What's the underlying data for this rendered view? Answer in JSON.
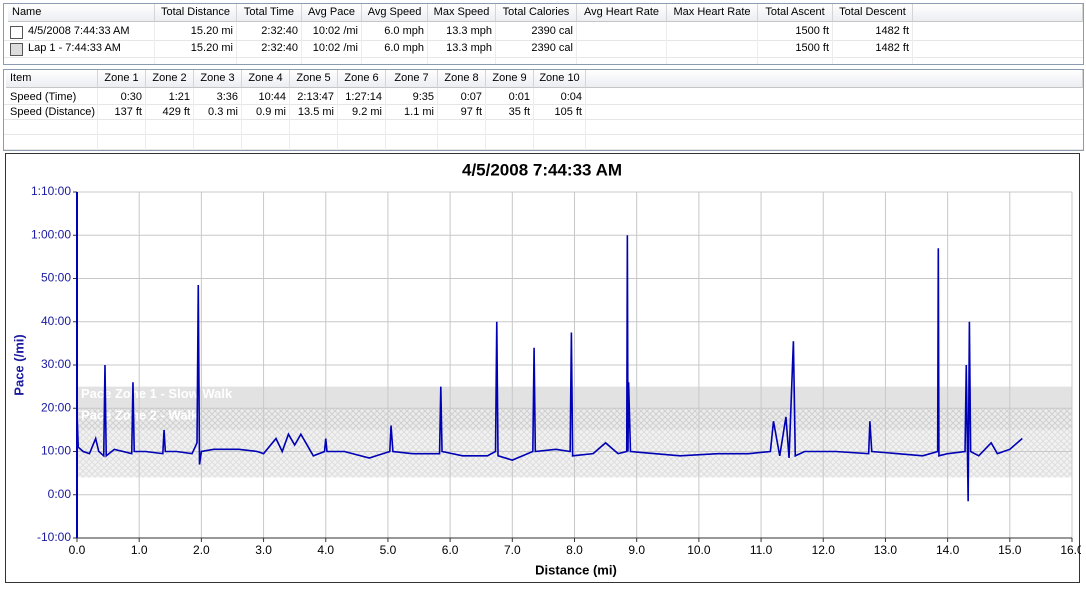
{
  "top_table": {
    "columns": [
      "Name",
      "Total Distance",
      "Total Time",
      "Avg Pace",
      "Avg Speed",
      "Max Speed",
      "Total Calories",
      "Avg Heart Rate",
      "Max Heart Rate",
      "Total Ascent",
      "Total Descent"
    ],
    "rows": [
      [
        "4/5/2008 7:44:33 AM",
        "15.20 mi",
        "2:32:40",
        "10:02 /mi",
        "6.0 mph",
        "13.3 mph",
        "2390 cal",
        null,
        null,
        "1500 ft",
        "1482 ft"
      ],
      [
        "Lap 1 - 7:44:33 AM",
        "15.20 mi",
        "2:32:40",
        "10:02 /mi",
        "6.0 mph",
        "13.3 mph",
        "2390 cal",
        null,
        null,
        "1500 ft",
        "1482 ft"
      ]
    ]
  },
  "zone_table": {
    "columns": [
      "Item",
      "Zone 1",
      "Zone 2",
      "Zone 3",
      "Zone 4",
      "Zone 5",
      "Zone 6",
      "Zone 7",
      "Zone 8",
      "Zone 9",
      "Zone 10"
    ],
    "rows": [
      [
        "Speed (Time)",
        "0:30",
        "1:21",
        "3:36",
        "10:44",
        "2:13:47",
        "1:27:14",
        "9:35",
        "0:07",
        "0:01",
        "0:04"
      ],
      [
        "Speed (Distance)",
        "137 ft",
        "429 ft",
        "0.3 mi",
        "0.9 mi",
        "13.5 mi",
        "9.2 mi",
        "1.1 mi",
        "97 ft",
        "35 ft",
        "105 ft"
      ]
    ]
  },
  "chart_data": {
    "type": "line",
    "title": "4/5/2008 7:44:33 AM",
    "x_label": "Distance (mi)",
    "y_label": "Pace (/mi)",
    "color": "#0000b4",
    "grid": true,
    "xlim": [
      0,
      16
    ],
    "xticks": [
      {
        "value": 0,
        "label": "0.0"
      },
      {
        "value": 1,
        "label": "1.0"
      },
      {
        "value": 2,
        "label": "2.0"
      },
      {
        "value": 3,
        "label": "3.0"
      },
      {
        "value": 4,
        "label": "4.0"
      },
      {
        "value": 5,
        "label": "5.0"
      },
      {
        "value": 6,
        "label": "6.0"
      },
      {
        "value": 7,
        "label": "7.0"
      },
      {
        "value": 8,
        "label": "8.0"
      },
      {
        "value": 9,
        "label": "9.0"
      },
      {
        "value": 10,
        "label": "10.0"
      },
      {
        "value": 11,
        "label": "11.0"
      },
      {
        "value": 12,
        "label": "12.0"
      },
      {
        "value": 13,
        "label": "13.0"
      },
      {
        "value": 14,
        "label": "14.0"
      },
      {
        "value": 15,
        "label": "15.0"
      },
      {
        "value": 16,
        "label": "16.0"
      }
    ],
    "ylim": [
      -10,
      70
    ],
    "yticks": [
      {
        "value": -10,
        "label": "-10:00"
      },
      {
        "value": 0,
        "label": "0:00"
      },
      {
        "value": 10,
        "label": "10:00"
      },
      {
        "value": 20,
        "label": "20:00"
      },
      {
        "value": 30,
        "label": "30:00"
      },
      {
        "value": 40,
        "label": "40:00"
      },
      {
        "value": 50,
        "label": "50:00"
      },
      {
        "value": 60,
        "label": "1:00:00"
      },
      {
        "value": 70,
        "label": "1:10:00"
      }
    ],
    "zones": [
      {
        "name": "Pace Zone 1 - Slow Walk",
        "range": [
          20,
          25
        ]
      },
      {
        "name": "Pace Zone 2 - Walk",
        "range": [
          15,
          20
        ]
      },
      {
        "range": [
          4,
          15
        ]
      }
    ],
    "x": [
      0,
      0.02,
      0.1,
      0.2,
      0.3,
      0.35,
      0.43,
      0.45,
      0.47,
      0.6,
      0.88,
      0.9,
      0.92,
      1.1,
      1.38,
      1.4,
      1.42,
      1.6,
      1.85,
      1.93,
      1.95,
      1.97,
      2.0,
      2.2,
      2.6,
      2.9,
      3.0,
      3.2,
      3.3,
      3.4,
      3.5,
      3.6,
      3.8,
      3.98,
      4.0,
      4.02,
      4.3,
      4.7,
      5.03,
      5.05,
      5.08,
      5.4,
      5.83,
      5.85,
      5.87,
      6.2,
      6.6,
      6.73,
      6.75,
      6.77,
      7.0,
      7.33,
      7.35,
      7.37,
      7.7,
      7.93,
      7.95,
      7.97,
      8.3,
      8.5,
      8.7,
      8.84,
      8.85,
      8.86,
      8.87,
      8.9,
      9.3,
      9.7,
      10.3,
      10.8,
      11.15,
      11.2,
      11.3,
      11.4,
      11.45,
      11.52,
      11.55,
      11.7,
      12.2,
      12.73,
      12.75,
      12.78,
      13.2,
      13.6,
      13.84,
      13.85,
      13.86,
      14.0,
      14.28,
      14.3,
      14.32,
      14.33,
      14.35,
      14.37,
      14.5,
      14.7,
      14.8,
      15.0,
      15.2
    ],
    "values": [
      19,
      11,
      10,
      9.5,
      13,
      10,
      9,
      30,
      9,
      10.5,
      9.5,
      26,
      10,
      10,
      9.5,
      15,
      10,
      10,
      9.5,
      12,
      48.5,
      7,
      10,
      10.5,
      10.5,
      10,
      9.5,
      13,
      10,
      14,
      11.5,
      14,
      9,
      10,
      13,
      10,
      10,
      8.5,
      10,
      16,
      10,
      9.5,
      9.5,
      25,
      10,
      9,
      9,
      10,
      40,
      9,
      8,
      10,
      34,
      10,
      10.5,
      10,
      37.5,
      9,
      9.5,
      12,
      9.5,
      10,
      60,
      10,
      26,
      10,
      9.5,
      9,
      9.5,
      9.5,
      10,
      17,
      9,
      18,
      8.5,
      35.5,
      9,
      10,
      10,
      9.5,
      17,
      10,
      9.5,
      9,
      10,
      57,
      9,
      9.5,
      10,
      30,
      9,
      -1.5,
      40,
      10,
      9,
      12,
      9.5,
      10.5,
      13
    ]
  }
}
